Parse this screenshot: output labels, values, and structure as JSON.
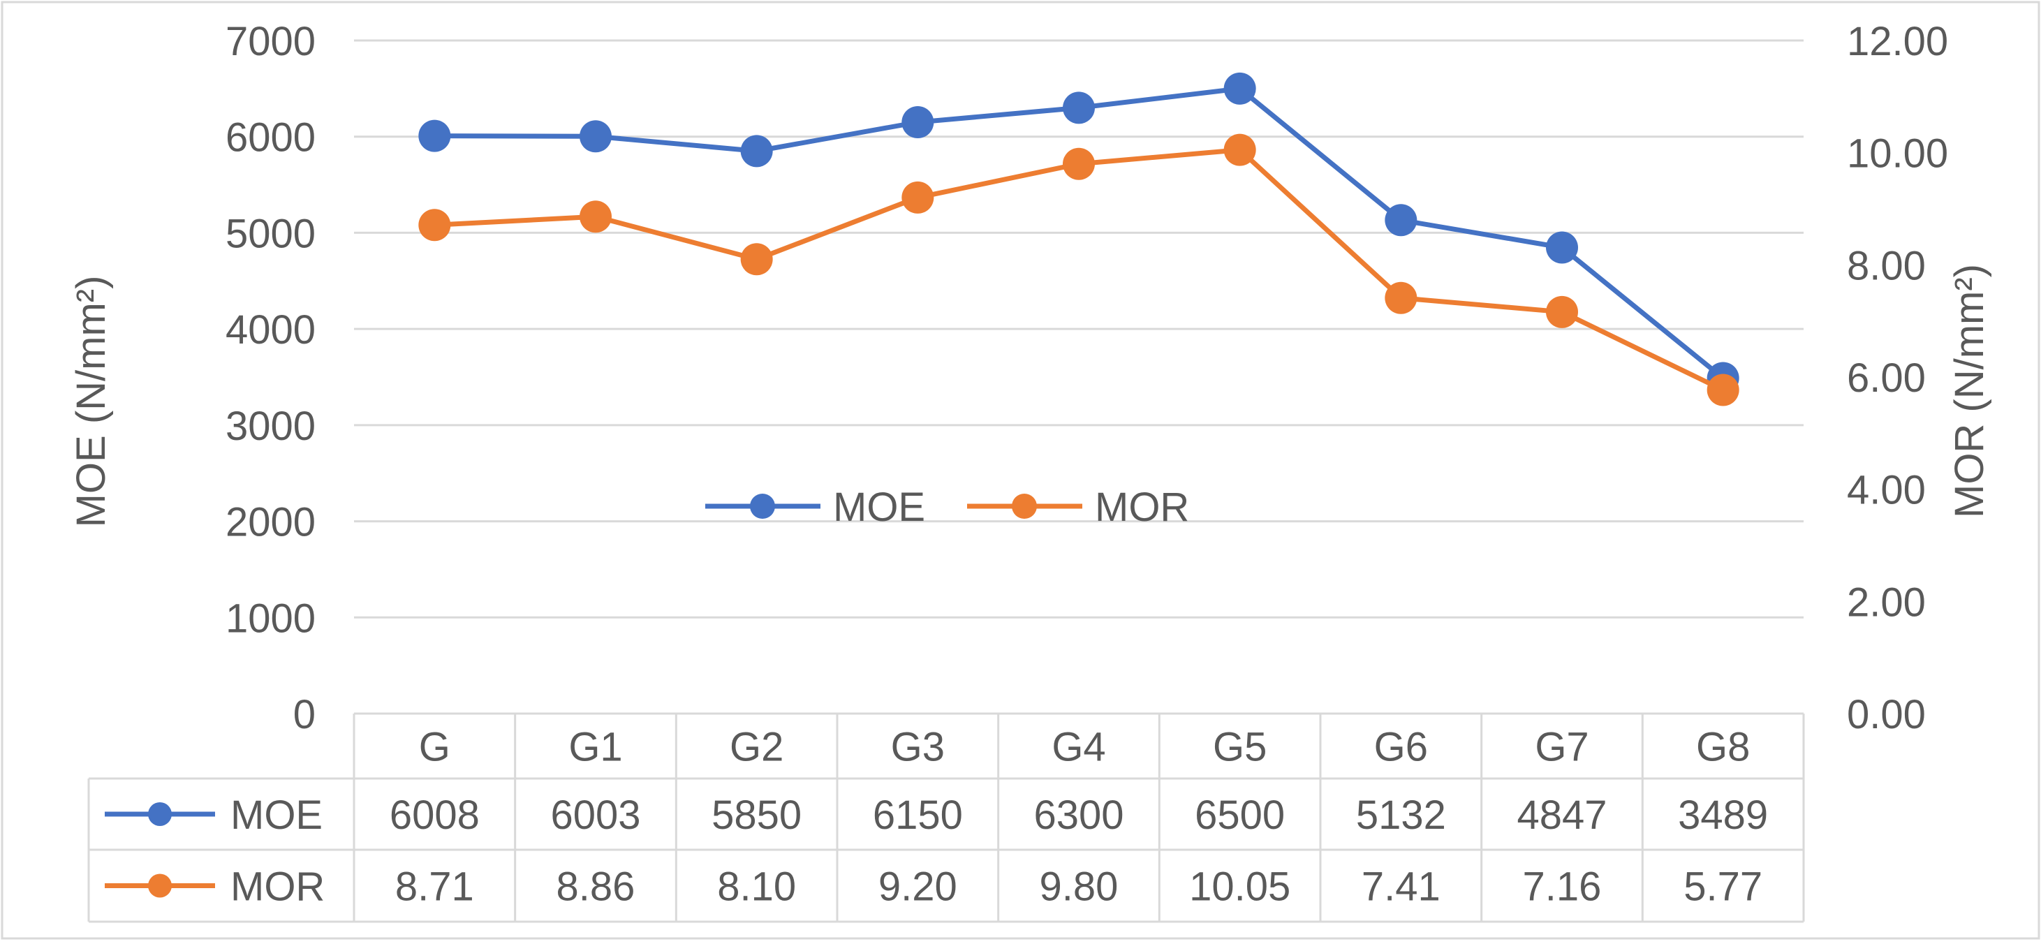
{
  "chart_data": {
    "type": "line",
    "title": "",
    "categories": [
      "G",
      "G1",
      "G2",
      "G3",
      "G4",
      "G5",
      "G6",
      "G7",
      "G8"
    ],
    "series": [
      {
        "name": "MOE",
        "axis": "left",
        "color": "#4472C4",
        "values": [
          6008,
          6003,
          5850,
          6150,
          6300,
          6500,
          5132,
          4847,
          3489
        ],
        "table_labels": [
          "6008",
          "6003",
          "5850",
          "6150",
          "6300",
          "6500",
          "5132",
          "4847",
          "3489"
        ]
      },
      {
        "name": "MOR",
        "axis": "right",
        "color": "#ED7D31",
        "values": [
          8.71,
          8.86,
          8.1,
          9.2,
          9.8,
          10.05,
          7.41,
          7.16,
          5.77
        ],
        "table_labels": [
          "8.71",
          "8.86",
          "8.10",
          "9.20",
          "9.80",
          "10.05",
          "7.41",
          "7.16",
          "5.77"
        ]
      }
    ],
    "y_left": {
      "label": "MOE (N/mm²)",
      "min": 0,
      "max": 7000,
      "ticks": [
        "0",
        "1000",
        "2000",
        "3000",
        "4000",
        "5000",
        "6000",
        "7000"
      ]
    },
    "y_right": {
      "label": "MOR (N/mm²)",
      "min": 0,
      "max": 12,
      "ticks": [
        "0.00",
        "2.00",
        "4.00",
        "6.00",
        "8.00",
        "10.00",
        "12.00"
      ]
    },
    "grid": true,
    "legend_position": "center",
    "data_table": true
  },
  "colors": {
    "grid": "#D9D9D9",
    "text": "#595959",
    "border": "#D9D9D9"
  }
}
